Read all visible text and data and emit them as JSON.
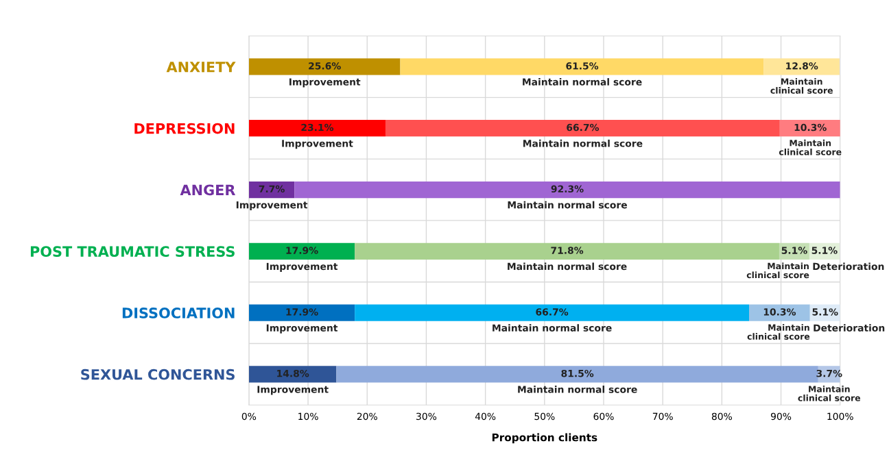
{
  "chart_data": {
    "type": "bar",
    "orientation": "horizontal",
    "stacked": true,
    "xlabel": "Proportion clients",
    "categories": [
      "ANXIETY",
      "DEPRESSION",
      "ANGER",
      "POST TRAUMATIC STRESS",
      "DISSOCIATION",
      "SEXUAL CONCERNS"
    ],
    "series": [
      {
        "name": "Improvement",
        "colors": [
          "#bf9000",
          "#ff0000",
          "#7030a0",
          "#00b050",
          "#0070c0",
          "#2f5597"
        ],
        "values": [
          25.6,
          23.1,
          7.7,
          17.9,
          17.9,
          14.8
        ],
        "value_labels": [
          "25.6%",
          "23.1%",
          "7.7%",
          "17.9%",
          "17.9%",
          "14.8%"
        ]
      },
      {
        "name": "Maintain normal score",
        "colors": [
          "#ffd966",
          "#ff5050",
          "#a066d3",
          "#a9d18e",
          "#00b0f0",
          "#8faadc"
        ],
        "values": [
          61.5,
          66.7,
          92.3,
          71.8,
          66.7,
          81.5
        ],
        "value_labels": [
          "61.5%",
          "66.7%",
          "92.3%",
          "71.8%",
          "66.7%",
          "81.5%"
        ]
      },
      {
        "name": "Maintain clinical score",
        "colors": [
          "#ffe699",
          "#ff7c80",
          "#ffffff",
          "#c5e0b4",
          "#9dc3e6",
          "#b4c7e7"
        ],
        "values": [
          12.8,
          10.3,
          null,
          5.1,
          10.3,
          3.7
        ],
        "value_labels": [
          "12.8%",
          "10.3%",
          null,
          "5.1%",
          "10.3%",
          "3.7%"
        ]
      },
      {
        "name": "Deterioration",
        "colors": [
          "#ffffff",
          "#ffffff",
          "#ffffff",
          "#e2f0d9",
          "#deebf7",
          "#ffffff"
        ],
        "values": [
          null,
          null,
          null,
          5.1,
          5.1,
          null
        ],
        "value_labels": [
          null,
          null,
          null,
          "5.1%",
          "5.1%",
          null
        ]
      }
    ],
    "xlim": [
      0,
      100
    ],
    "xticks": [
      {
        "value": 0,
        "label": "0%"
      },
      {
        "value": 10,
        "label": "10%"
      },
      {
        "value": 20,
        "label": "20%"
      },
      {
        "value": 30,
        "label": "30%"
      },
      {
        "value": 40,
        "label": "40%"
      },
      {
        "value": 50,
        "label": "50%"
      },
      {
        "value": 60,
        "label": "60%"
      },
      {
        "value": 70,
        "label": "70%"
      },
      {
        "value": 80,
        "label": "80%"
      },
      {
        "value": 90,
        "label": "90%"
      },
      {
        "value": 100,
        "label": "100%"
      }
    ],
    "grid": true,
    "legend": false
  }
}
